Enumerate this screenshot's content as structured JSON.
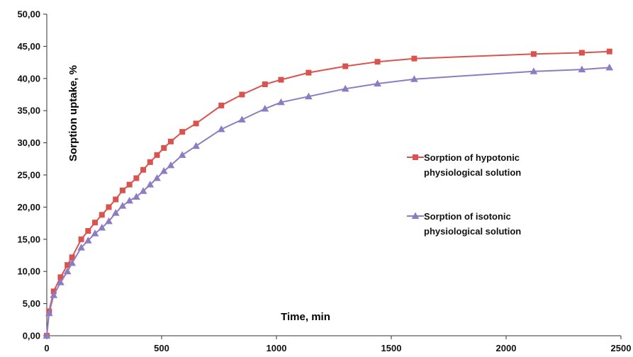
{
  "chart_data": {
    "type": "line",
    "title": "",
    "xlabel": "Time, min",
    "ylabel": "Sorption  uptake, %",
    "xlim": [
      0,
      2500
    ],
    "ylim": [
      0,
      50
    ],
    "x_ticks": [
      "0",
      "500",
      "1000",
      "1500",
      "2000",
      "2500"
    ],
    "y_ticks": [
      "0,00",
      "5,00",
      "10,00",
      "15,00",
      "20,00",
      "25,00",
      "30,00",
      "35,00",
      "40,00",
      "45,00",
      "50,00"
    ],
    "grid": false,
    "legend_position": "right",
    "series": [
      {
        "name_lines": [
          "Sorption of hypotonic",
          "physiological solution"
        ],
        "color": "#d9534f",
        "marker": "square",
        "x": [
          0,
          10,
          30,
          60,
          90,
          110,
          150,
          180,
          210,
          240,
          270,
          300,
          330,
          360,
          390,
          420,
          450,
          480,
          510,
          540,
          590,
          650,
          760,
          850,
          950,
          1020,
          1140,
          1300,
          1440,
          1600,
          2120,
          2330,
          2450
        ],
        "y": [
          0,
          3.8,
          6.9,
          9.1,
          11.0,
          12.2,
          15.0,
          16.3,
          17.6,
          18.8,
          20.0,
          21.2,
          22.6,
          23.5,
          24.5,
          25.8,
          27.0,
          28.1,
          29.2,
          30.2,
          31.7,
          33.0,
          35.8,
          37.5,
          39.1,
          39.8,
          40.9,
          41.9,
          42.6,
          43.1,
          43.8,
          44.0,
          44.2
        ]
      },
      {
        "name_lines": [
          "Sorption of isotonic",
          "physiological solution"
        ],
        "color": "#8e7cc3",
        "marker": "triangle",
        "x": [
          0,
          10,
          30,
          60,
          90,
          110,
          150,
          180,
          210,
          240,
          270,
          300,
          330,
          360,
          390,
          420,
          450,
          480,
          510,
          540,
          590,
          650,
          760,
          850,
          950,
          1020,
          1140,
          1300,
          1440,
          1600,
          2120,
          2330,
          2450
        ],
        "y": [
          0,
          3.5,
          6.3,
          8.3,
          10.0,
          11.3,
          13.7,
          14.8,
          15.9,
          16.8,
          17.8,
          19.1,
          20.2,
          21.0,
          21.6,
          22.5,
          23.5,
          24.5,
          25.6,
          26.5,
          28.1,
          29.5,
          32.1,
          33.6,
          35.3,
          36.3,
          37.2,
          38.4,
          39.2,
          39.9,
          41.1,
          41.4,
          41.7
        ]
      }
    ]
  }
}
